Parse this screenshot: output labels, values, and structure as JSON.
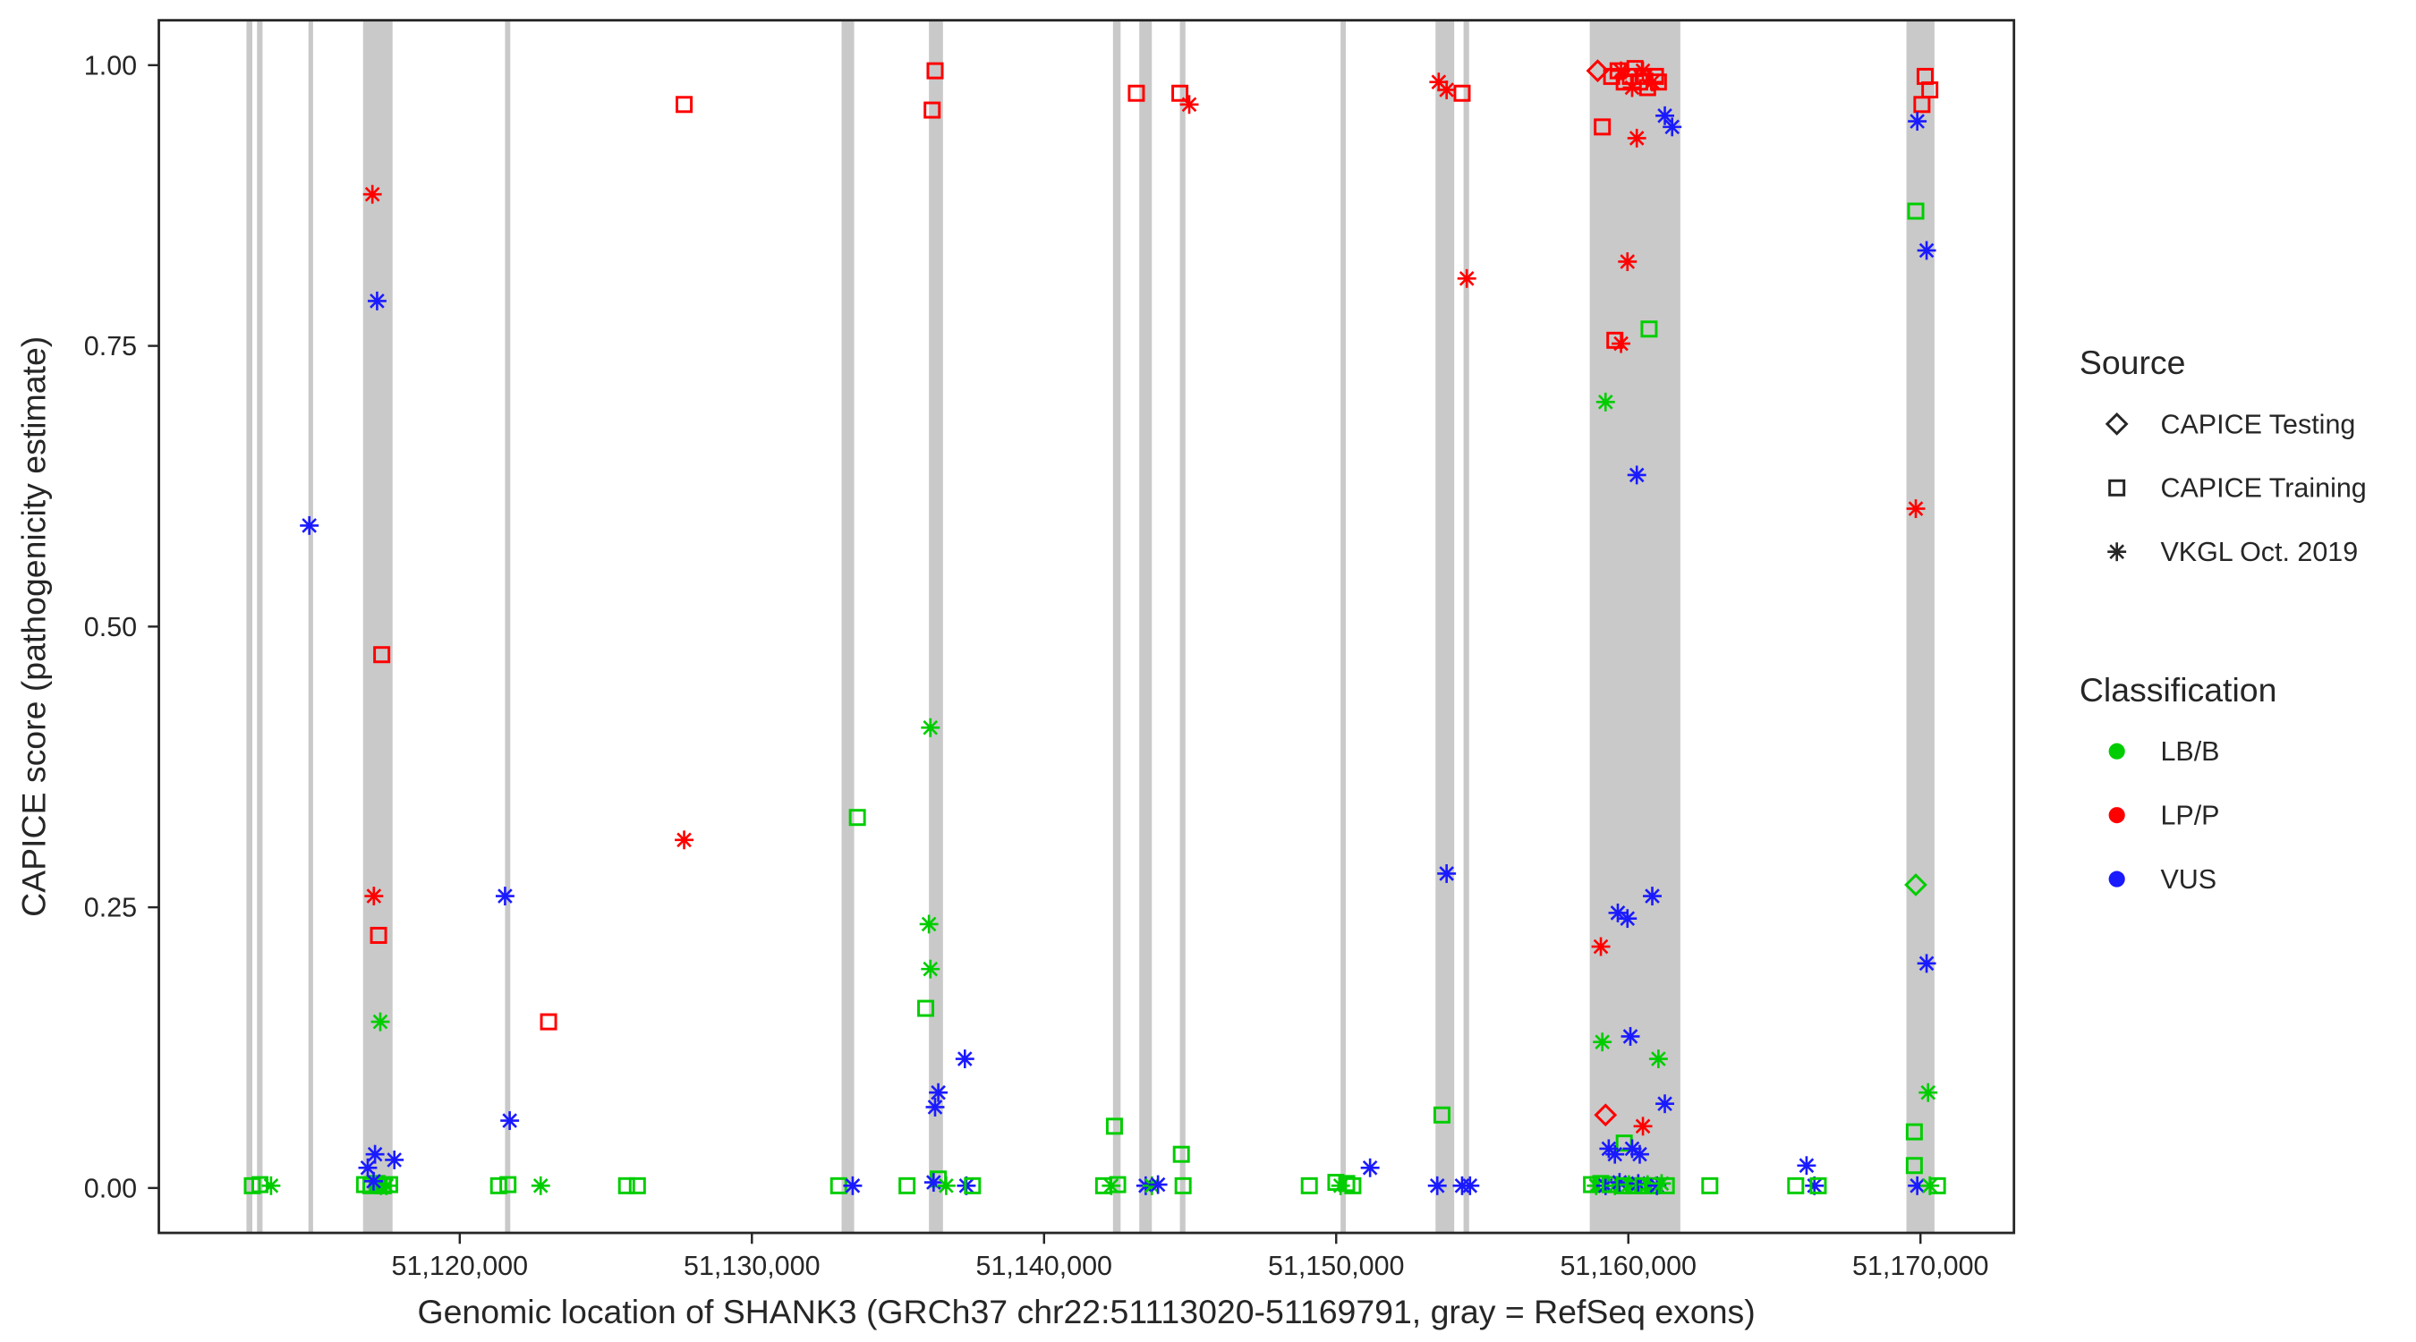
{
  "chart_data": {
    "type": "scatter",
    "title": "",
    "xlabel": "Genomic location of SHANK3 (GRCh37 chr22:51113020-51169791, gray = RefSeq exons)",
    "ylabel": "CAPICE score (pathogenicity estimate)",
    "xlim": [
      51109700,
      51173200
    ],
    "ylim": [
      -0.04,
      1.04
    ],
    "x_ticks": [
      51120000,
      51130000,
      51140000,
      51150000,
      51160000,
      51170000
    ],
    "x_tick_labels": [
      "51,120,000",
      "51,130,000",
      "51,140,000",
      "51,150,000",
      "51,160,000",
      "51,170,000"
    ],
    "y_ticks": [
      0,
      0.25,
      0.5,
      0.75,
      1
    ],
    "y_tick_labels": [
      "0.00",
      "0.25",
      "0.50",
      "0.75",
      "1.00"
    ],
    "grid": false,
    "legend_position": "right",
    "background": "#FFFFFF",
    "exon_color": "#C9C9C9",
    "axis_color": "#262626",
    "text_color": "#262626",
    "source_labels": {
      "test": "CAPICE Testing",
      "train": "CAPICE Training",
      "vkgl": "VKGL Oct. 2019"
    },
    "source_shapes": {
      "test": "diamond",
      "train": "square",
      "vkgl": "asterisk"
    },
    "classification_colors": {
      "LB/B": "#00CD00",
      "LP/P": "#FF0000",
      "VUS": "#1A1AFF"
    },
    "legend": {
      "source_title": "Source",
      "source_order": [
        "test",
        "train",
        "vkgl"
      ],
      "classification_title": "Classification",
      "classification_order": [
        "LB/B",
        "LP/P",
        "VUS"
      ]
    },
    "exons": [
      [
        51112700,
        51112900
      ],
      [
        51113060,
        51113250
      ],
      [
        51114820,
        51114980
      ],
      [
        51116690,
        51117700
      ],
      [
        51121550,
        51121730
      ],
      [
        51133070,
        51133500
      ],
      [
        51136060,
        51136540
      ],
      [
        51142360,
        51142620
      ],
      [
        51143260,
        51143690
      ],
      [
        51144650,
        51144840
      ],
      [
        51150150,
        51150330
      ],
      [
        51153400,
        51154040
      ],
      [
        51154360,
        51154550
      ],
      [
        51158680,
        51161780
      ],
      [
        51169520,
        51170480
      ]
    ],
    "points_format": [
      "genomic_position",
      "capice_score",
      "source",
      "classification"
    ],
    "points": [
      [
        51112900,
        0.002,
        "train",
        "LB/B"
      ],
      [
        51113160,
        0.003,
        "train",
        "LB/B"
      ],
      [
        51113540,
        0.002,
        "vkgl",
        "LB/B"
      ],
      [
        51114850,
        0.59,
        "vkgl",
        "VUS"
      ],
      [
        51117010,
        0.885,
        "vkgl",
        "LP/P"
      ],
      [
        51117170,
        0.79,
        "vkgl",
        "VUS"
      ],
      [
        51117330,
        0.475,
        "train",
        "LP/P"
      ],
      [
        51117060,
        0.26,
        "vkgl",
        "LP/P"
      ],
      [
        51117220,
        0.225,
        "train",
        "LP/P"
      ],
      [
        51117280,
        0.148,
        "vkgl",
        "LB/B"
      ],
      [
        51116850,
        0.018,
        "vkgl",
        "VUS"
      ],
      [
        51117100,
        0.03,
        "vkgl",
        "VUS"
      ],
      [
        51117760,
        0.025,
        "vkgl",
        "VUS"
      ],
      [
        51116740,
        0.003,
        "train",
        "LB/B"
      ],
      [
        51116960,
        0.002,
        "train",
        "LB/B"
      ],
      [
        51117170,
        0.004,
        "train",
        "LB/B"
      ],
      [
        51117380,
        0.002,
        "train",
        "LB/B"
      ],
      [
        51117600,
        0.003,
        "train",
        "LB/B"
      ],
      [
        51117300,
        0.002,
        "vkgl",
        "LB/B"
      ],
      [
        51117490,
        0.002,
        "vkgl",
        "LB/B"
      ],
      [
        51117050,
        0.006,
        "vkgl",
        "VUS"
      ],
      [
        51121550,
        0.26,
        "vkgl",
        "VUS"
      ],
      [
        51121710,
        0.06,
        "vkgl",
        "VUS"
      ],
      [
        51121330,
        0.002,
        "train",
        "LB/B"
      ],
      [
        51121650,
        0.003,
        "train",
        "LB/B"
      ],
      [
        51122770,
        0.002,
        "vkgl",
        "LB/B"
      ],
      [
        51123040,
        0.148,
        "train",
        "LP/P"
      ],
      [
        51125710,
        0.002,
        "train",
        "LB/B"
      ],
      [
        51126080,
        0.002,
        "train",
        "LB/B"
      ],
      [
        51127680,
        0.965,
        "train",
        "LP/P"
      ],
      [
        51127680,
        0.31,
        "vkgl",
        "LP/P"
      ],
      [
        51133610,
        0.33,
        "train",
        "LB/B"
      ],
      [
        51132970,
        0.002,
        "train",
        "LB/B"
      ],
      [
        51133450,
        0.002,
        "vkgl",
        "VUS"
      ],
      [
        51136270,
        0.995,
        "train",
        "LP/P"
      ],
      [
        51136170,
        0.96,
        "train",
        "LP/P"
      ],
      [
        51136110,
        0.41,
        "vkgl",
        "LB/B"
      ],
      [
        51136060,
        0.235,
        "vkgl",
        "LB/B"
      ],
      [
        51136110,
        0.195,
        "vkgl",
        "LB/B"
      ],
      [
        51135950,
        0.16,
        "train",
        "LB/B"
      ],
      [
        51136380,
        0.085,
        "vkgl",
        "VUS"
      ],
      [
        51136270,
        0.072,
        "vkgl",
        "VUS"
      ],
      [
        51137290,
        0.115,
        "vkgl",
        "VUS"
      ],
      [
        51135310,
        0.002,
        "train",
        "LB/B"
      ],
      [
        51136380,
        0.008,
        "train",
        "LB/B"
      ],
      [
        51136220,
        0.005,
        "vkgl",
        "VUS"
      ],
      [
        51137340,
        0.002,
        "vkgl",
        "VUS"
      ],
      [
        51137550,
        0.002,
        "train",
        "LB/B"
      ],
      [
        51136650,
        0.002,
        "vkgl",
        "LB/B"
      ],
      [
        51142410,
        0.055,
        "train",
        "LB/B"
      ],
      [
        51143160,
        0.975,
        "train",
        "LP/P"
      ],
      [
        51144650,
        0.975,
        "train",
        "LP/P"
      ],
      [
        51144970,
        0.965,
        "vkgl",
        "LP/P"
      ],
      [
        51144700,
        0.03,
        "train",
        "LB/B"
      ],
      [
        51142040,
        0.002,
        "train",
        "LB/B"
      ],
      [
        51142300,
        0.002,
        "vkgl",
        "LB/B"
      ],
      [
        51142520,
        0.003,
        "train",
        "LB/B"
      ],
      [
        51143480,
        0.002,
        "vkgl",
        "VUS"
      ],
      [
        51143690,
        0.002,
        "vkgl",
        "LB/B"
      ],
      [
        51143900,
        0.003,
        "vkgl",
        "VUS"
      ],
      [
        51144760,
        0.002,
        "train",
        "LB/B"
      ],
      [
        51149080,
        0.002,
        "train",
        "LB/B"
      ],
      [
        51149990,
        0.005,
        "train",
        "LB/B"
      ],
      [
        51150150,
        0.002,
        "vkgl",
        "LB/B"
      ],
      [
        51150360,
        0.004,
        "train",
        "LB/B"
      ],
      [
        51150570,
        0.002,
        "train",
        "LB/B"
      ],
      [
        51151160,
        0.018,
        "vkgl",
        "VUS"
      ],
      [
        51153510,
        0.985,
        "vkgl",
        "LP/P"
      ],
      [
        51153780,
        0.978,
        "vkgl",
        "LP/P"
      ],
      [
        51154310,
        0.975,
        "train",
        "LP/P"
      ],
      [
        51154470,
        0.81,
        "vkgl",
        "LP/P"
      ],
      [
        51153780,
        0.28,
        "vkgl",
        "VUS"
      ],
      [
        51153620,
        0.065,
        "train",
        "LB/B"
      ],
      [
        51153460,
        0.002,
        "vkgl",
        "VUS"
      ],
      [
        51154310,
        0.002,
        "vkgl",
        "VUS"
      ],
      [
        51154580,
        0.002,
        "vkgl",
        "VUS"
      ],
      [
        51158950,
        0.995,
        "test",
        "LP/P"
      ],
      [
        51159110,
        0.945,
        "train",
        "LP/P"
      ],
      [
        51159430,
        0.99,
        "train",
        "LP/P"
      ],
      [
        51159650,
        0.995,
        "train",
        "LP/P"
      ],
      [
        51159860,
        0.985,
        "train",
        "LP/P"
      ],
      [
        51160070,
        0.99,
        "train",
        "LP/P"
      ],
      [
        51160230,
        0.997,
        "train",
        "LP/P"
      ],
      [
        51160390,
        0.985,
        "train",
        "LP/P"
      ],
      [
        51160500,
        0.99,
        "train",
        "LP/P"
      ],
      [
        51160660,
        0.98,
        "train",
        "LP/P"
      ],
      [
        51160930,
        0.99,
        "train",
        "LP/P"
      ],
      [
        51161030,
        0.985,
        "train",
        "LP/P"
      ],
      [
        51159750,
        0.995,
        "vkgl",
        "LP/P"
      ],
      [
        51160130,
        0.98,
        "vkgl",
        "LP/P"
      ],
      [
        51160500,
        0.995,
        "vkgl",
        "LP/P"
      ],
      [
        51160820,
        0.985,
        "vkgl",
        "LP/P"
      ],
      [
        51160290,
        0.935,
        "vkgl",
        "LP/P"
      ],
      [
        51161250,
        0.955,
        "vkgl",
        "VUS"
      ],
      [
        51161500,
        0.945,
        "vkgl",
        "VUS"
      ],
      [
        51159970,
        0.825,
        "vkgl",
        "LP/P"
      ],
      [
        51159540,
        0.755,
        "train",
        "LP/P"
      ],
      [
        51159750,
        0.752,
        "vkgl",
        "LP/P"
      ],
      [
        51160710,
        0.765,
        "train",
        "LB/B"
      ],
      [
        51159220,
        0.7,
        "vkgl",
        "LB/B"
      ],
      [
        51160290,
        0.635,
        "vkgl",
        "VUS"
      ],
      [
        51160820,
        0.26,
        "vkgl",
        "VUS"
      ],
      [
        51159640,
        0.245,
        "vkgl",
        "VUS"
      ],
      [
        51159970,
        0.24,
        "vkgl",
        "VUS"
      ],
      [
        51159060,
        0.215,
        "vkgl",
        "LP/P"
      ],
      [
        51160070,
        0.135,
        "vkgl",
        "VUS"
      ],
      [
        51159110,
        0.13,
        "vkgl",
        "LB/B"
      ],
      [
        51161030,
        0.115,
        "vkgl",
        "LB/B"
      ],
      [
        51161250,
        0.075,
        "vkgl",
        "VUS"
      ],
      [
        51159220,
        0.065,
        "test",
        "LP/P"
      ],
      [
        51160500,
        0.055,
        "vkgl",
        "LP/P"
      ],
      [
        51159860,
        0.04,
        "train",
        "LB/B"
      ],
      [
        51159330,
        0.035,
        "vkgl",
        "VUS"
      ],
      [
        51159540,
        0.03,
        "vkgl",
        "VUS"
      ],
      [
        51160130,
        0.035,
        "vkgl",
        "VUS"
      ],
      [
        51160390,
        0.03,
        "vkgl",
        "VUS"
      ],
      [
        51158740,
        0.003,
        "train",
        "LB/B"
      ],
      [
        51158900,
        0.002,
        "vkgl",
        "LB/B"
      ],
      [
        51159060,
        0.004,
        "train",
        "LB/B"
      ],
      [
        51159220,
        0.002,
        "vkgl",
        "VUS"
      ],
      [
        51159380,
        0.003,
        "train",
        "LB/B"
      ],
      [
        51159540,
        0.002,
        "vkgl",
        "LB/B"
      ],
      [
        51159700,
        0.005,
        "vkgl",
        "VUS"
      ],
      [
        51159860,
        0.002,
        "train",
        "LB/B"
      ],
      [
        51160020,
        0.003,
        "vkgl",
        "LB/B"
      ],
      [
        51160180,
        0.002,
        "train",
        "LB/B"
      ],
      [
        51160340,
        0.004,
        "vkgl",
        "VUS"
      ],
      [
        51160500,
        0.002,
        "train",
        "LB/B"
      ],
      [
        51160660,
        0.003,
        "vkgl",
        "LB/B"
      ],
      [
        51160820,
        0.002,
        "train",
        "LB/B"
      ],
      [
        51160980,
        0.002,
        "vkgl",
        "VUS"
      ],
      [
        51161140,
        0.004,
        "vkgl",
        "LB/B"
      ],
      [
        51161300,
        0.002,
        "train",
        "LB/B"
      ],
      [
        51162790,
        0.002,
        "train",
        "LB/B"
      ],
      [
        51165730,
        0.002,
        "train",
        "LB/B"
      ],
      [
        51166100,
        0.02,
        "vkgl",
        "VUS"
      ],
      [
        51166370,
        0.002,
        "vkgl",
        "VUS"
      ],
      [
        51166500,
        0.002,
        "train",
        "LB/B"
      ],
      [
        51170160,
        0.99,
        "train",
        "LP/P"
      ],
      [
        51170320,
        0.978,
        "train",
        "LP/P"
      ],
      [
        51170050,
        0.965,
        "train",
        "LP/P"
      ],
      [
        51169890,
        0.95,
        "vkgl",
        "VUS"
      ],
      [
        51169840,
        0.87,
        "train",
        "LB/B"
      ],
      [
        51170210,
        0.835,
        "vkgl",
        "VUS"
      ],
      [
        51169840,
        0.605,
        "vkgl",
        "LP/P"
      ],
      [
        51169840,
        0.27,
        "test",
        "LB/B"
      ],
      [
        51170210,
        0.2,
        "vkgl",
        "VUS"
      ],
      [
        51170260,
        0.085,
        "vkgl",
        "LB/B"
      ],
      [
        51169790,
        0.05,
        "train",
        "LB/B"
      ],
      [
        51169790,
        0.02,
        "train",
        "LB/B"
      ],
      [
        51169890,
        0.002,
        "vkgl",
        "VUS"
      ],
      [
        51170320,
        0.002,
        "vkgl",
        "LB/B"
      ],
      [
        51170580,
        0.002,
        "train",
        "LB/B"
      ]
    ]
  }
}
